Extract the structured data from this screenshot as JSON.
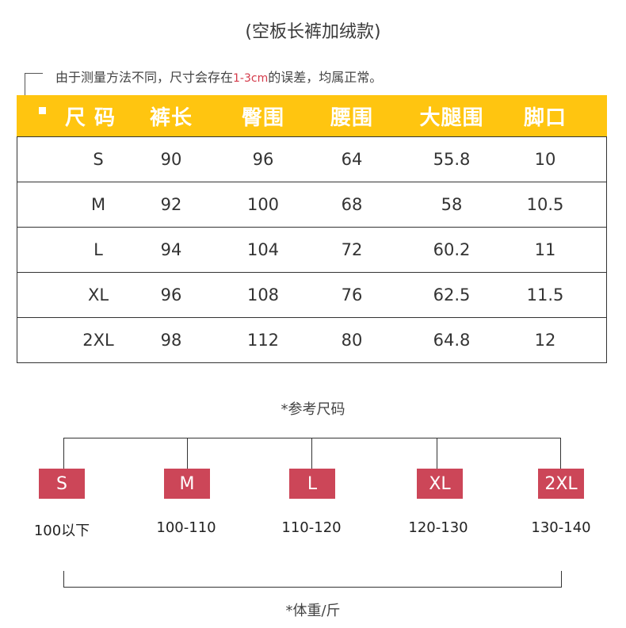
{
  "title": "(空板长裤加绒款)",
  "note": {
    "before": "由于测量方法不同，尺寸会存在",
    "highlight": "1-3cm",
    "after": "的误差，均属正常。"
  },
  "table": {
    "headers": [
      "尺 码",
      "裤长",
      "臀围",
      "腰围",
      "大腿围",
      "脚口"
    ],
    "rows": [
      [
        "S",
        "90",
        "96",
        "64",
        "55.8",
        "10"
      ],
      [
        "M",
        "92",
        "100",
        "68",
        "58",
        "10.5"
      ],
      [
        "L",
        "94",
        "104",
        "72",
        "60.2",
        "11"
      ],
      [
        "XL",
        "96",
        "108",
        "76",
        "62.5",
        "11.5"
      ],
      [
        "2XL",
        "98",
        "112",
        "80",
        "64.8",
        "12"
      ]
    ]
  },
  "reference_label": "*参考尺码",
  "sizes": [
    {
      "label": "S",
      "range": "100以下"
    },
    {
      "label": "M",
      "range": "100-110"
    },
    {
      "label": "L",
      "range": "110-120"
    },
    {
      "label": "XL",
      "range": "120-130"
    },
    {
      "label": "2XL",
      "range": "130-140"
    }
  ],
  "unit_label": "*体重/斤",
  "colors": {
    "header_bg": "#ffc510",
    "size_box": "#cc4658",
    "highlight": "#d43a4a"
  }
}
